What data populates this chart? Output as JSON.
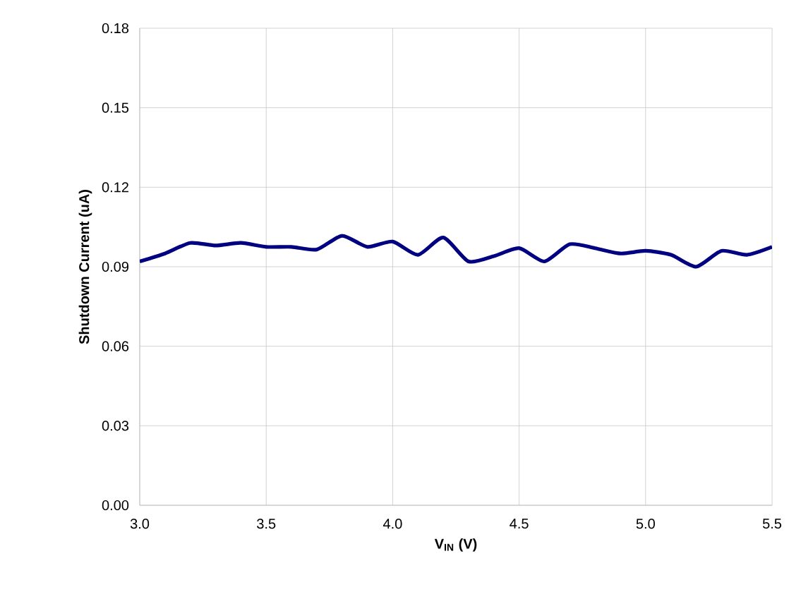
{
  "chart_data": {
    "type": "line",
    "xlabel": "V$_{IN}$ (V)",
    "ylabel": "Shutdown Current (uA)",
    "x": [
      3.0,
      3.1,
      3.2,
      3.3,
      3.4,
      3.5,
      3.6,
      3.7,
      3.8,
      3.9,
      4.0,
      4.1,
      4.2,
      4.3,
      4.4,
      4.5,
      4.6,
      4.7,
      4.8,
      4.9,
      5.0,
      5.1,
      5.2,
      5.3,
      5.4,
      5.5
    ],
    "series": [
      {
        "color": "#000080",
        "values": [
          0.092,
          0.095,
          0.099,
          0.098,
          0.099,
          0.0975,
          0.0975,
          0.0965,
          0.1017,
          0.0975,
          0.0995,
          0.0945,
          0.101,
          0.092,
          0.094,
          0.097,
          0.092,
          0.0985,
          0.097,
          0.095,
          0.096,
          0.0945,
          0.09,
          0.096,
          0.0945,
          0.0975
        ]
      }
    ],
    "xlim": [
      3.0,
      5.5
    ],
    "ylim": [
      0,
      0.18
    ],
    "xticks": [
      {
        "value": 3.0,
        "label": "3.0"
      },
      {
        "value": 3.5,
        "label": "3.5"
      },
      {
        "value": 4.0,
        "label": "4.0"
      },
      {
        "value": 4.5,
        "label": "4.5"
      },
      {
        "value": 5.0,
        "label": "5.0"
      },
      {
        "value": 5.5,
        "label": "5.5"
      }
    ],
    "yticks": [
      {
        "value": 0,
        "label": "0.00"
      },
      {
        "value": 0.03,
        "label": "0.03"
      },
      {
        "value": 0.06,
        "label": "0.06"
      },
      {
        "value": 0.09,
        "label": "0.09"
      },
      {
        "value": 0.12,
        "label": "0.12"
      },
      {
        "value": 0.15,
        "label": "0.15"
      },
      {
        "value": 0.18,
        "label": "0.18"
      }
    ],
    "grid": true,
    "marker": "none",
    "line_style": "solid"
  }
}
